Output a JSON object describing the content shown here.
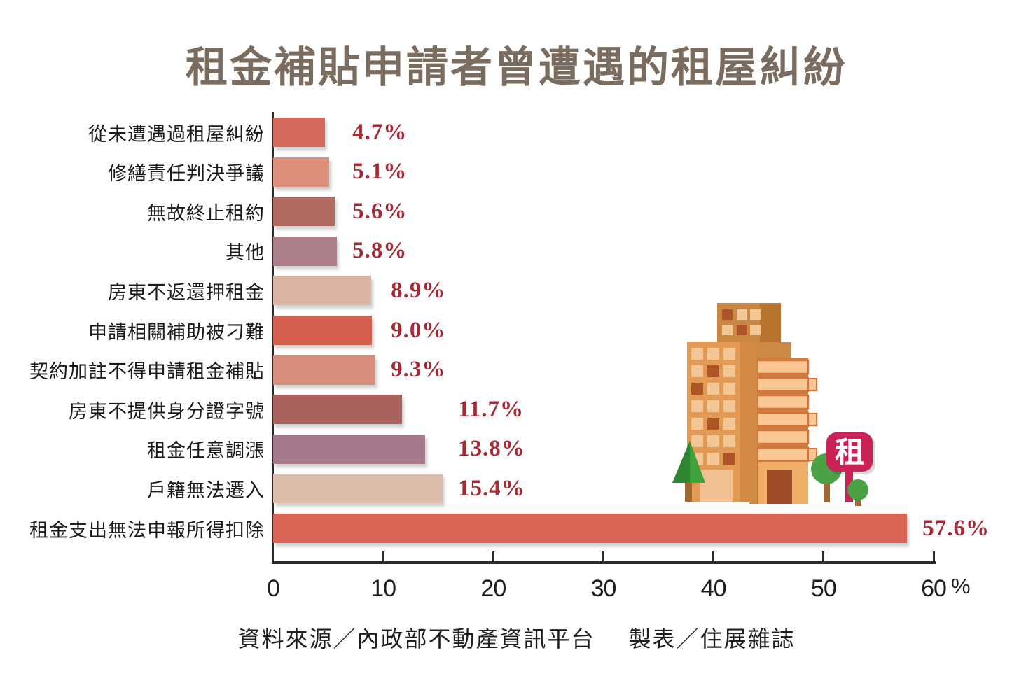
{
  "chart_data": {
    "type": "bar",
    "orientation": "horizontal",
    "title": "租金補貼申請者曾遭遇的租屋糾紛",
    "categories": [
      "從未遭遇過租屋糾紛",
      "修繕責任判決爭議",
      "無故終止租約",
      "其他",
      "房東不返還押租金",
      "申請相關補助被刁難",
      "契約加註不得申請租金補貼",
      "房東不提供身分證字號",
      "租金任意調漲",
      "戶籍無法遷入",
      "租金支出無法申報所得扣除"
    ],
    "values": [
      4.7,
      5.1,
      5.6,
      5.8,
      8.9,
      9.0,
      9.3,
      11.7,
      13.8,
      15.4,
      57.6
    ],
    "value_labels": [
      "4.7%",
      "5.1%",
      "5.6%",
      "5.8%",
      "8.9%",
      "9.0%",
      "9.3%",
      "11.7%",
      "13.8%",
      "15.4%",
      "57.6%"
    ],
    "bar_colors": [
      "#d6695b",
      "#de8f7a",
      "#b16a60",
      "#ab7e8a",
      "#dcb4a3",
      "#d55f4e",
      "#d68d7a",
      "#a9635c",
      "#a5798b",
      "#debcab",
      "#d96455"
    ],
    "x_ticks": [
      0,
      10,
      20,
      30,
      40,
      50,
      60
    ],
    "xlim": [
      0,
      60
    ],
    "xlabel": "%",
    "grid": false,
    "legend": "none",
    "label_align_groups": [
      [
        0,
        1,
        2,
        3
      ],
      [
        4,
        5,
        6
      ],
      [
        7,
        8,
        9
      ],
      [
        10
      ]
    ]
  },
  "footer": {
    "source": "資料來源／內政部不動產資訊平台",
    "credit": "製表／住展雜誌"
  },
  "illustration": {
    "sign_text": "租",
    "sign_color": "#ca2157"
  },
  "colors": {
    "title": "#7b6c60",
    "category_label": "#1b1b1b",
    "value_label": "#a52a35",
    "axis": "#2b2b2b"
  }
}
